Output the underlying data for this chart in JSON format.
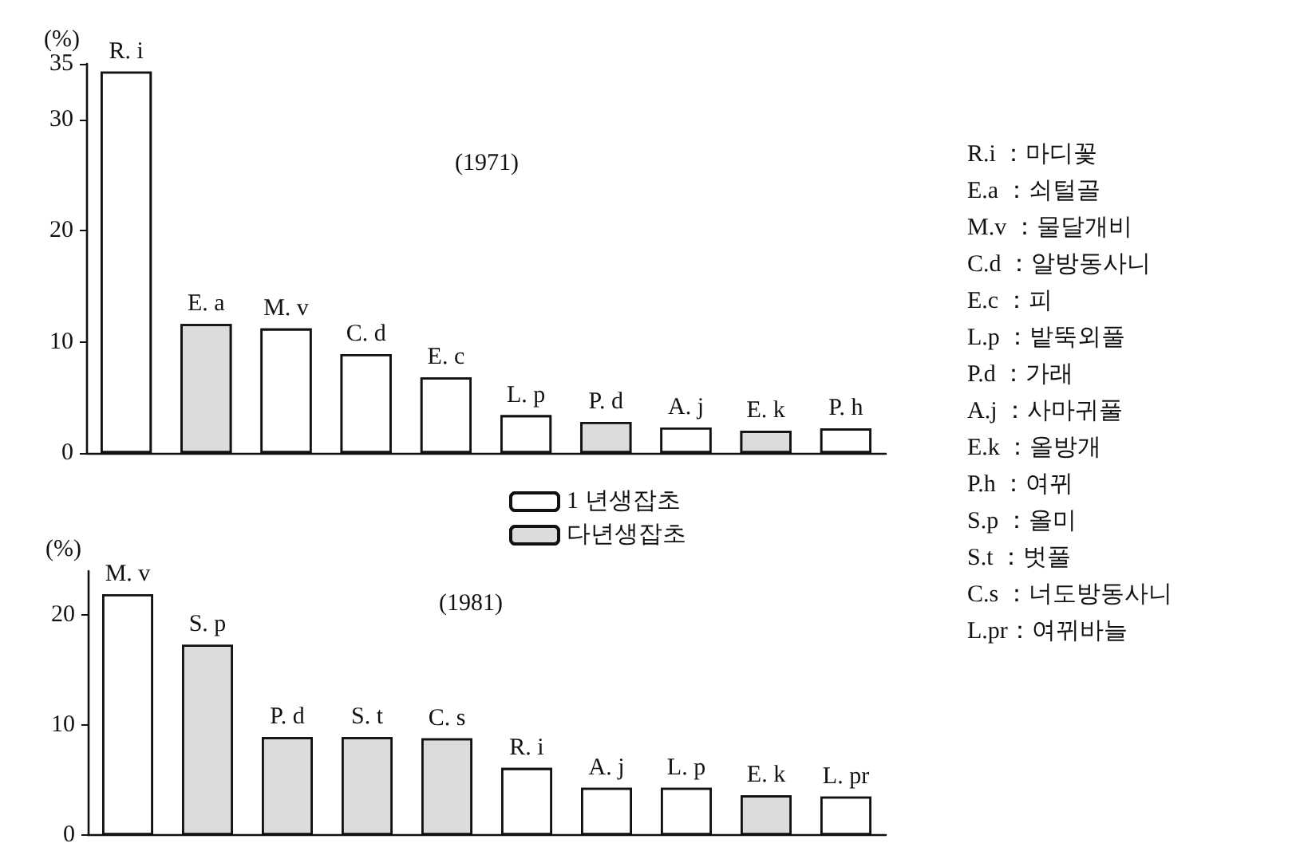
{
  "chart_data": [
    {
      "type": "bar",
      "title": "(1971)",
      "ylabel": "(%)",
      "stacked": true,
      "legend": false,
      "grid": false,
      "categories": [
        "R. i",
        "E. a",
        "M. v",
        "C. d",
        "E. c",
        "L. p",
        "P. d",
        "A. j",
        "E. k",
        "P. h"
      ],
      "series": [
        {
          "color": "#ffffff",
          "values": [
            34.3,
            null,
            11.2,
            8.9,
            6.8,
            3.4,
            null,
            2.3,
            null,
            2.2
          ]
        },
        {
          "color": "#dcdcdc",
          "values": [
            null,
            11.6,
            null,
            null,
            null,
            null,
            2.8,
            null,
            2.0,
            null
          ]
        }
      ],
      "ylim": [
        0,
        35
      ],
      "yticks": [
        0,
        10,
        20,
        30,
        35
      ],
      "annotations": [
        "R.i ：마디꽃",
        "E.a ：쇠털골",
        "M.v ：물달개비",
        "C.d ：알방동사니",
        "E.c ：피",
        "L.p ：밭뚝외풀",
        "P.d ：가래",
        "A.j ：사마귀풀",
        "E.k ：올방개",
        "P.h ：여뀌",
        "S.p ：올미",
        "S.t ：벗풀",
        "C.s ：너도방동사니",
        "L.pr：여뀌바늘"
      ]
    },
    {
      "type": "bar",
      "title": "(1981)",
      "ylabel": "(%)",
      "stacked": true,
      "legend": "top right",
      "grid": false,
      "categories": [
        "M. v",
        "S. p",
        "P. d",
        "S. t",
        "C. s",
        "R. i",
        "A. j",
        "L. p",
        "E. k",
        "L. pr"
      ],
      "series": [
        {
          "name": "1 년생잡초",
          "color": "#ffffff",
          "values": [
            21.9,
            null,
            null,
            null,
            null,
            6.1,
            4.3,
            4.3,
            null,
            3.5
          ]
        },
        {
          "name": "다년생잡초",
          "color": "#dcdcdc",
          "values": [
            null,
            17.3,
            8.9,
            8.9,
            8.8,
            null,
            null,
            null,
            3.6,
            null
          ]
        }
      ],
      "ylim": [
        0,
        24
      ],
      "yticks": [
        0,
        10,
        20
      ]
    }
  ]
}
